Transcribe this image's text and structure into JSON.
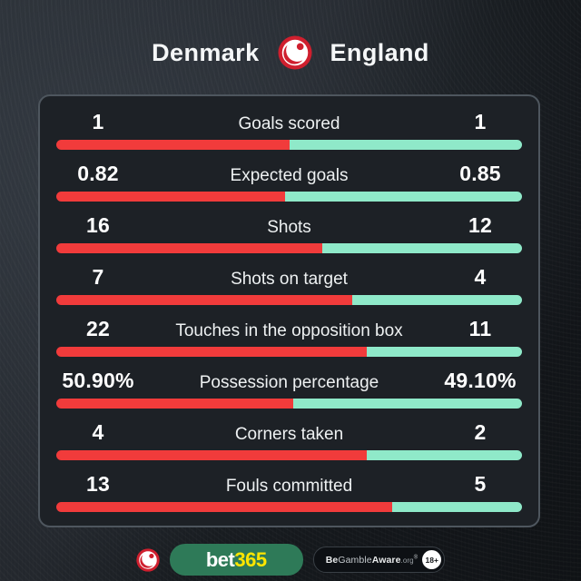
{
  "match": {
    "home_team": "Denmark",
    "away_team": "England"
  },
  "colors": {
    "home_bar": "#f13b3b",
    "away_bar": "#8fe9c9",
    "logo_red": "#cf1f2e",
    "bet365_green": "#2e7a58",
    "bet365_yellow": "#ffe600",
    "panel_border": "#4e565e",
    "panel_bg": "#1d2126"
  },
  "chart_data": {
    "type": "bar",
    "title": "Denmark vs England match statistics",
    "categories": [
      "Goals scored",
      "Expected goals",
      "Shots",
      "Shots on target",
      "Touches in the opposition box",
      "Possession percentage",
      "Corners taken",
      "Fouls committed"
    ],
    "series": [
      {
        "name": "Denmark",
        "values": [
          1,
          0.82,
          16,
          7,
          22,
          50.9,
          4,
          13
        ]
      },
      {
        "name": "England",
        "values": [
          1,
          0.85,
          12,
          4,
          11,
          49.1,
          2,
          5
        ]
      }
    ],
    "legend_position": "none",
    "grid": false,
    "layout_hint": "paired horizontal proportion bars, home share red from left, away share mint from right"
  },
  "stats": [
    {
      "label": "Goals scored",
      "home": "1",
      "away": "1",
      "home_pct": 50.0
    },
    {
      "label": "Expected goals",
      "home": "0.82",
      "away": "0.85",
      "home_pct": 49.1
    },
    {
      "label": "Shots",
      "home": "16",
      "away": "12",
      "home_pct": 57.1
    },
    {
      "label": "Shots on target",
      "home": "7",
      "away": "4",
      "home_pct": 63.6
    },
    {
      "label": "Touches in the opposition box",
      "home": "22",
      "away": "11",
      "home_pct": 66.7
    },
    {
      "label": "Possession percentage",
      "home": "50.90%",
      "away": "49.10%",
      "home_pct": 50.9
    },
    {
      "label": "Corners taken",
      "home": "4",
      "away": "2",
      "home_pct": 66.7
    },
    {
      "label": "Fouls committed",
      "home": "13",
      "away": "5",
      "home_pct": 72.2
    }
  ],
  "footer": {
    "bet365": {
      "bet": "bet",
      "num": "365"
    },
    "gamble_aware": {
      "be": "Be",
      "gamble": "Gamble",
      "aware": "Aware",
      "org": ".org",
      "reg": "®",
      "age": "18+"
    }
  }
}
